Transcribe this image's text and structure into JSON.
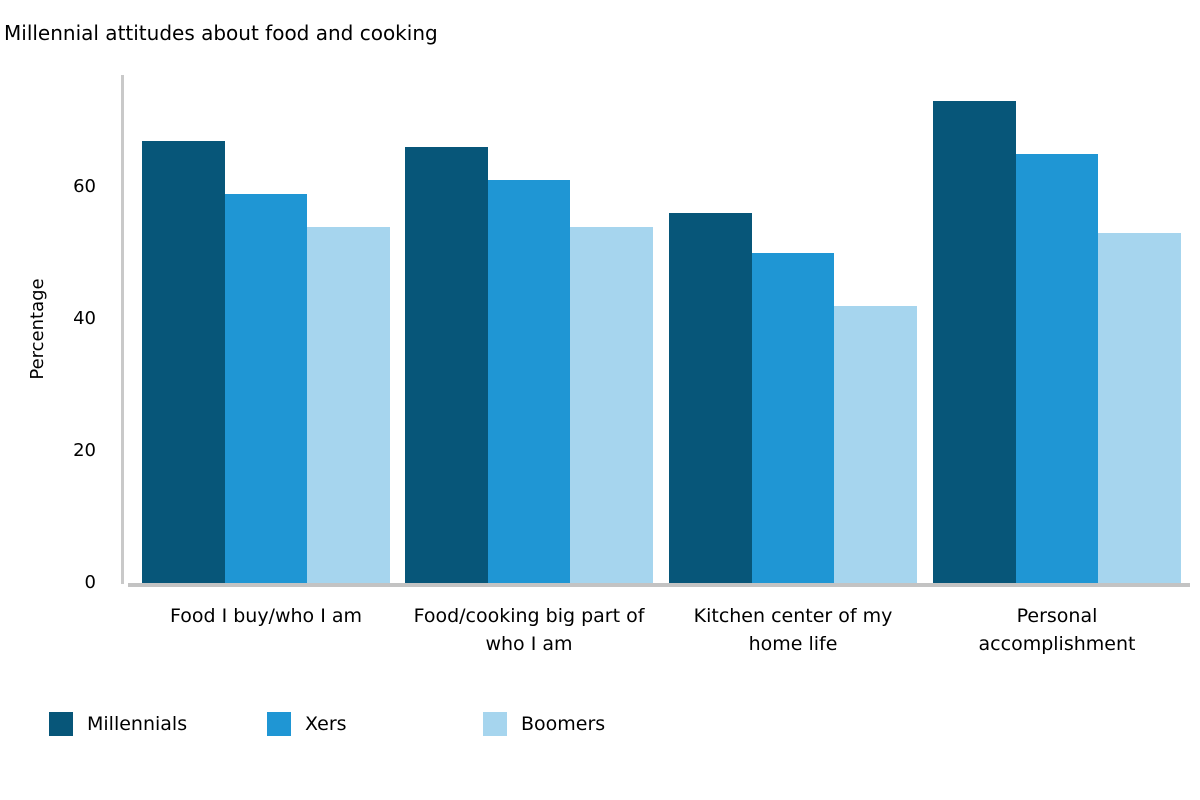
{
  "title": "Millennial attitudes about food and cooking",
  "chart_data": {
    "type": "bar",
    "title": "Millennial attitudes about food and cooking",
    "ylabel": "Percentage",
    "xlabel": "",
    "yticks": [
      0,
      20,
      40,
      60
    ],
    "ylim": [
      0,
      77
    ],
    "grid": false,
    "legend_position": "bottom-left",
    "categories": [
      "Food I buy/who I am",
      "Food/cooking big part of who I am",
      "Kitchen center of my home life",
      "Personal accomplishment"
    ],
    "category_label_lines": [
      [
        "Food I buy/who I am"
      ],
      [
        "Food/cooking big part of",
        "who I am"
      ],
      [
        "Kitchen center of my",
        "home life"
      ],
      [
        "Personal",
        "accomplishment"
      ]
    ],
    "series": [
      {
        "name": "Millennials",
        "color": "#075679",
        "values": [
          67,
          66,
          56,
          73
        ]
      },
      {
        "name": "Xers",
        "color": "#1F96D4",
        "values": [
          59,
          61,
          50,
          65
        ]
      },
      {
        "name": "Boomers",
        "color": "#A6D5EE",
        "values": [
          54,
          54,
          42,
          53
        ]
      }
    ],
    "axis_color": "#C6C6C6",
    "text_color": "#000000"
  }
}
